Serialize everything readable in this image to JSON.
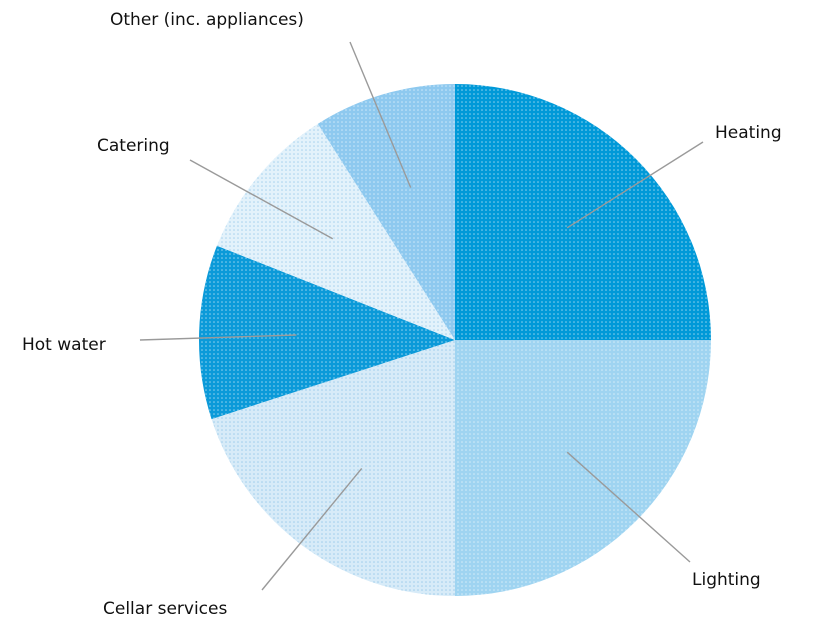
{
  "chart_data": {
    "type": "pie",
    "title": "",
    "start_angle_deg": 0,
    "direction": "clockwise",
    "categories": [
      "Heating",
      "Lighting",
      "Cellar services",
      "Hot water",
      "Catering",
      "Other (inc. appliances)"
    ],
    "values": [
      25,
      25,
      20,
      11,
      10,
      9
    ],
    "unit": "%",
    "colors": [
      "#0099d8",
      "#9fd4f1",
      "#d7ebf8",
      "#0b9ad9",
      "#e3f2fb",
      "#8ec9ef"
    ],
    "legend": "none (labels with leader lines)"
  }
}
